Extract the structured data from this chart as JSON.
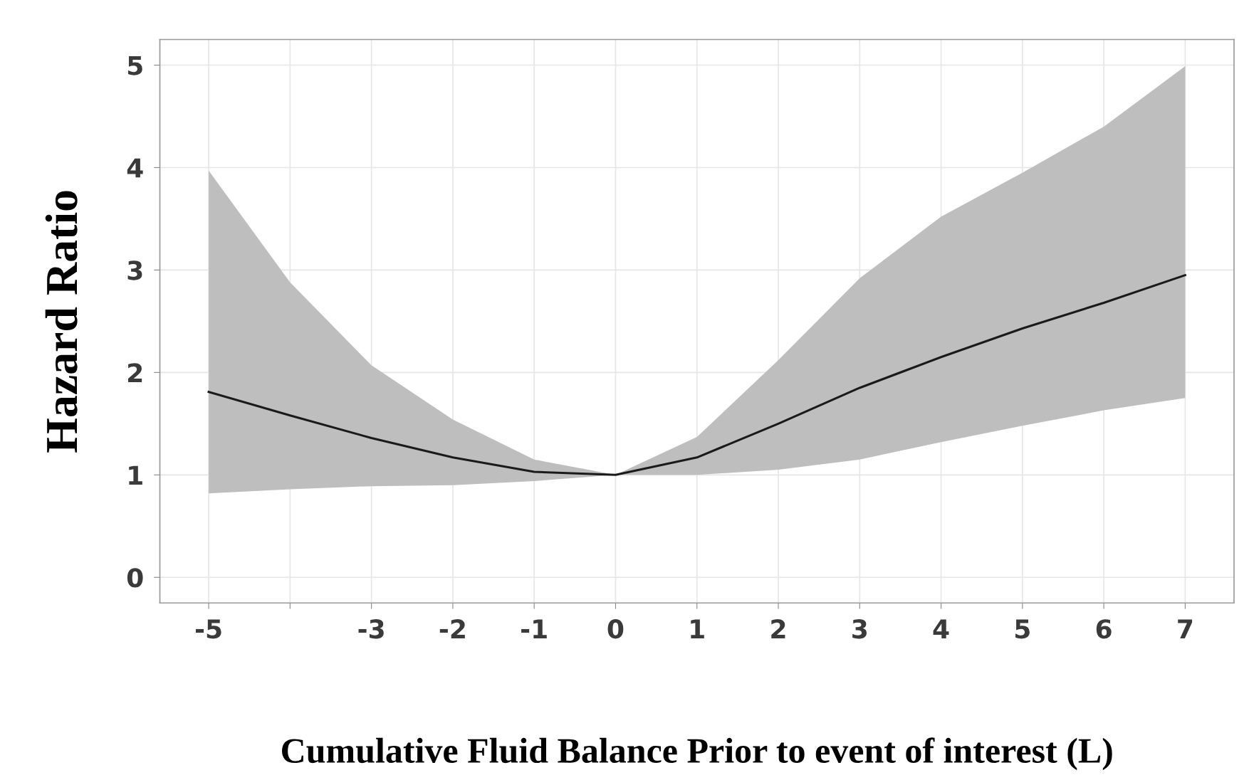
{
  "chart_data": {
    "type": "line",
    "xlabel": "Cumulative Fluid Balance Prior to event of interest (L)",
    "ylabel": "Hazard Ratio",
    "x": [
      -5,
      -4,
      -3,
      -2,
      -1,
      0,
      1,
      2,
      3,
      4,
      5,
      6,
      7
    ],
    "series": [
      {
        "color": "#1a1a1a",
        "values": [
          1.81,
          1.58,
          1.36,
          1.17,
          1.03,
          1.0,
          1.17,
          1.5,
          1.85,
          2.15,
          2.43,
          2.68,
          2.95
        ],
        "lower": [
          0.82,
          0.86,
          0.89,
          0.9,
          0.94,
          1.0,
          1.0,
          1.05,
          1.15,
          1.32,
          1.48,
          1.63,
          1.75
        ],
        "upper": [
          3.97,
          2.88,
          2.07,
          1.54,
          1.15,
          1.0,
          1.37,
          2.12,
          2.92,
          3.52,
          3.95,
          4.4,
          4.99
        ]
      }
    ],
    "xlim": [
      -5.6,
      7.6
    ],
    "xticks": [
      -5,
      {
        "value": -4,
        "label": null
      },
      -3,
      -2,
      -1,
      0,
      1,
      2,
      3,
      4,
      5,
      6,
      7
    ],
    "ylim": [
      -0.25,
      5.25
    ],
    "yticks": [
      0,
      1,
      2,
      3,
      4,
      5
    ],
    "grid": true,
    "line_style": "solid",
    "marker": "none"
  }
}
